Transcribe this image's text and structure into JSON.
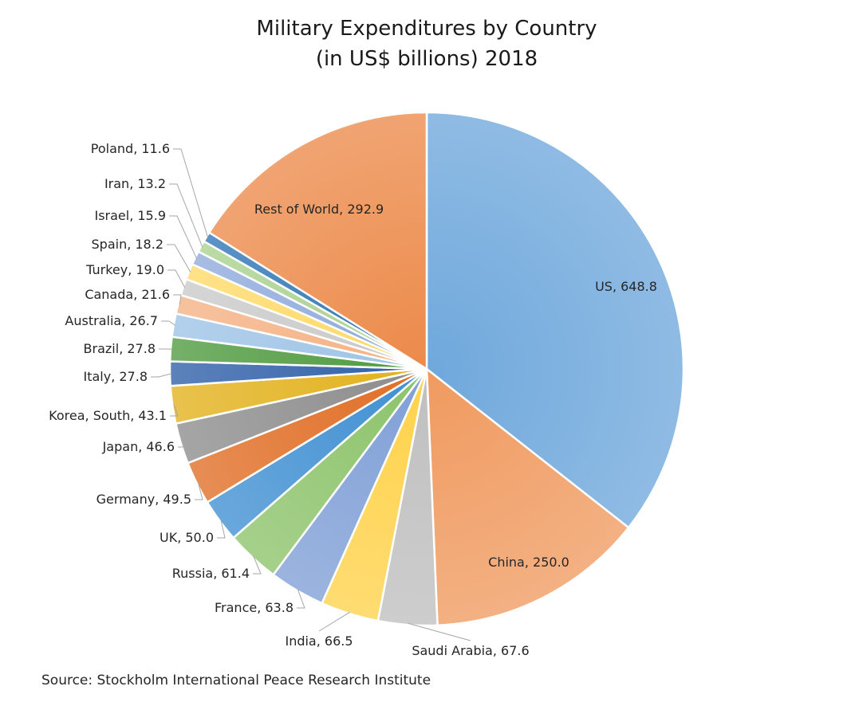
{
  "chart_data": {
    "type": "pie",
    "title": [
      "Military Expenditures by Country",
      "(in US$ billions) 2018"
    ],
    "source": "Source: Stockholm International Peace Research Institute",
    "slices": [
      {
        "label": "US",
        "value": 648.8,
        "display": "US, 648.8",
        "color": "#6fa8dc"
      },
      {
        "label": "China",
        "value": 250.0,
        "display": "China, 250.0",
        "color": "#f09a5f"
      },
      {
        "label": "Saudi Arabia",
        "value": 67.6,
        "display": "Saudi Arabia, 67.6",
        "color": "#bfbfbf"
      },
      {
        "label": "India",
        "value": 66.5,
        "display": "India, 66.5",
        "color": "#ffd24a"
      },
      {
        "label": "France",
        "value": 63.8,
        "display": "France, 63.8",
        "color": "#7f9fd6"
      },
      {
        "label": "Russia",
        "value": 61.4,
        "display": "Russia, 61.4",
        "color": "#8cc36a"
      },
      {
        "label": "UK",
        "value": 50.0,
        "display": "UK, 50.0",
        "color": "#3f8fd2"
      },
      {
        "label": "Germany",
        "value": 49.5,
        "display": "Germany, 49.5",
        "color": "#e06d24"
      },
      {
        "label": "Japan",
        "value": 46.6,
        "display": "Japan, 46.6",
        "color": "#8c8c8c"
      },
      {
        "label": "Korea, South",
        "value": 43.1,
        "display": "Korea, South, 43.1",
        "color": "#e2b11b"
      },
      {
        "label": "Italy",
        "value": 27.8,
        "display": "Italy, 27.8",
        "color": "#2f5fa8"
      },
      {
        "label": "Brazil",
        "value": 27.8,
        "display": "Brazil, 27.8",
        "color": "#4e9a3e"
      },
      {
        "label": "Australia",
        "value": 26.7,
        "display": "Australia, 26.7",
        "color": "#9dc3e6"
      },
      {
        "label": "Canada",
        "value": 21.6,
        "display": "Canada, 21.6",
        "color": "#f4b183"
      },
      {
        "label": "Turkey",
        "value": 19.0,
        "display": "Turkey, 19.0",
        "color": "#c9c9c9"
      },
      {
        "label": "Spain",
        "value": 18.2,
        "display": "Spain, 18.2",
        "color": "#ffd966"
      },
      {
        "label": "Israel",
        "value": 15.9,
        "display": "Israel, 15.9",
        "color": "#8eaadb"
      },
      {
        "label": "Iran",
        "value": 13.2,
        "display": "Iran, 13.2",
        "color": "#a9d18e"
      },
      {
        "label": "Poland",
        "value": 11.6,
        "display": "Poland, 11.6",
        "color": "#2e75b6"
      },
      {
        "label": "Rest of World",
        "value": 292.9,
        "display": "Rest of World, 292.9",
        "color": "#ec8a4a"
      }
    ]
  }
}
